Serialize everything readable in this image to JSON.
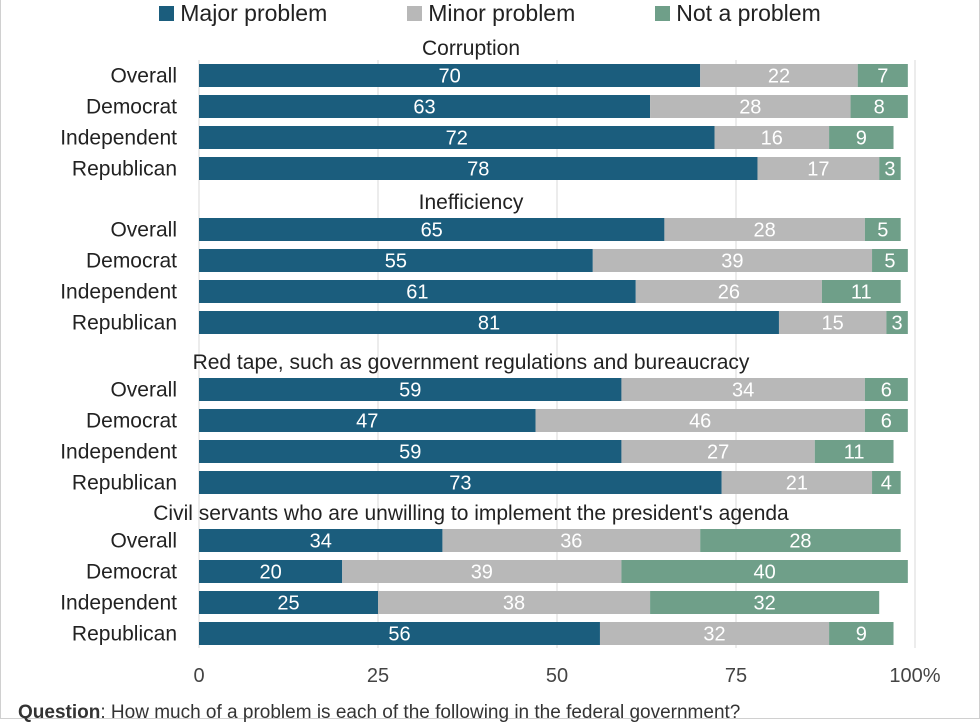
{
  "legend": [
    {
      "label": "Major problem",
      "color": "#1b5d7d"
    },
    {
      "label": "Minor problem",
      "color": "#b8b8b8"
    },
    {
      "label": "Not a problem",
      "color": "#6f9f89"
    }
  ],
  "footnote": {
    "label": "Question",
    "text": ": How much of a problem is each of the following in the federal government?"
  },
  "chart_data": {
    "type": "bar",
    "orientation": "horizontal",
    "stacked": true,
    "x_ticks": [
      "0",
      "25",
      "50",
      "75",
      "100%"
    ],
    "xlim": [
      0,
      100
    ],
    "grid": true,
    "legend_position": "top",
    "series_names": [
      "Major problem",
      "Minor problem",
      "Not a problem"
    ],
    "groups": [
      {
        "title": "Corruption",
        "rows": [
          {
            "label": "Overall",
            "values": [
              70,
              22,
              7
            ]
          },
          {
            "label": "Democrat",
            "values": [
              63,
              28,
              8
            ]
          },
          {
            "label": "Independent",
            "values": [
              72,
              16,
              9
            ]
          },
          {
            "label": "Republican",
            "values": [
              78,
              17,
              3
            ]
          }
        ]
      },
      {
        "title": "Inefficiency",
        "rows": [
          {
            "label": "Overall",
            "values": [
              65,
              28,
              5
            ]
          },
          {
            "label": "Democrat",
            "values": [
              55,
              39,
              5
            ]
          },
          {
            "label": "Independent",
            "values": [
              61,
              26,
              11
            ]
          },
          {
            "label": "Republican",
            "values": [
              81,
              15,
              3
            ]
          }
        ]
      },
      {
        "title": "Red tape, such as government regulations and bureaucracy",
        "rows": [
          {
            "label": "Overall",
            "values": [
              59,
              34,
              6
            ]
          },
          {
            "label": "Democrat",
            "values": [
              47,
              46,
              6
            ]
          },
          {
            "label": "Independent",
            "values": [
              59,
              27,
              11
            ]
          },
          {
            "label": "Republican",
            "values": [
              73,
              21,
              4
            ]
          }
        ]
      },
      {
        "title": "Civil servants who are unwilling to implement the president's agenda",
        "rows": [
          {
            "label": "Overall",
            "values": [
              34,
              36,
              28
            ]
          },
          {
            "label": "Democrat",
            "values": [
              20,
              39,
              40
            ]
          },
          {
            "label": "Independent",
            "values": [
              25,
              38,
              32
            ]
          },
          {
            "label": "Republican",
            "values": [
              56,
              32,
              9
            ]
          }
        ]
      }
    ]
  }
}
